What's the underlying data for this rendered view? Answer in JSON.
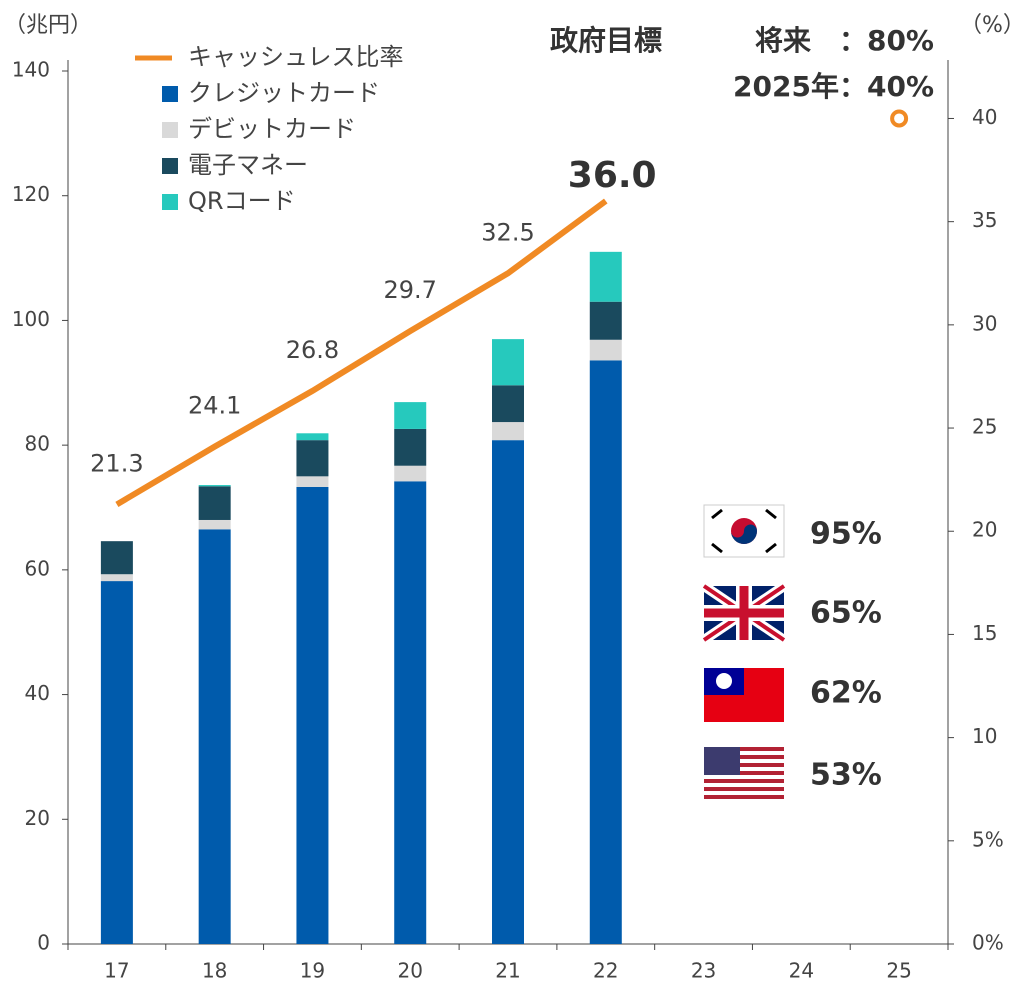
{
  "chart_data": {
    "type": "bar",
    "categories": [
      "17",
      "18",
      "19",
      "20",
      "21",
      "22",
      "23",
      "24",
      "25"
    ],
    "series": [
      {
        "name": "クレジットカード",
        "color": "#005bac",
        "values": [
          58.2,
          66.5,
          73.3,
          74.2,
          80.8,
          93.6,
          null,
          null,
          null
        ]
      },
      {
        "name": "デビットカード",
        "color": "#d9d9d9",
        "values": [
          1.1,
          1.5,
          1.7,
          2.5,
          2.9,
          3.3,
          null,
          null,
          null
        ]
      },
      {
        "name": "電子マネー",
        "color": "#1a4a5e",
        "values": [
          5.3,
          5.4,
          5.8,
          5.9,
          5.9,
          6.1,
          null,
          null,
          null
        ]
      },
      {
        "name": "QRコード",
        "color": "#26c9bd",
        "values": [
          0,
          0.2,
          1.1,
          4.3,
          7.4,
          8.0,
          null,
          null,
          null
        ]
      },
      {
        "name": "キャッシュレス比率",
        "color": "#f08a24",
        "type": "line",
        "axis": "y2",
        "values": [
          21.3,
          24.1,
          26.8,
          29.7,
          32.5,
          36.0,
          null,
          null,
          40
        ],
        "value_labels": [
          "21.3",
          "24.1",
          "26.8",
          "29.7",
          "32.5",
          "36.0",
          null,
          null,
          null
        ]
      }
    ],
    "ylabel": "（兆円）",
    "y2label": "（%）",
    "ylim": [
      0,
      140
    ],
    "yticks": [
      0,
      20,
      40,
      60,
      80,
      100,
      120,
      140
    ],
    "y2lim": [
      0,
      42.3
    ],
    "y2ticks": [
      {
        "value": 0,
        "label": "0%"
      },
      {
        "value": 5,
        "label": "5%"
      },
      10,
      15,
      20,
      25,
      30,
      35,
      40
    ],
    "annotations": [
      "政府目標",
      "将来　：80%",
      "2025年：40%"
    ],
    "flag_labels": [
      "95%",
      "65%",
      "62%",
      "53%"
    ],
    "legend": "upper left"
  }
}
